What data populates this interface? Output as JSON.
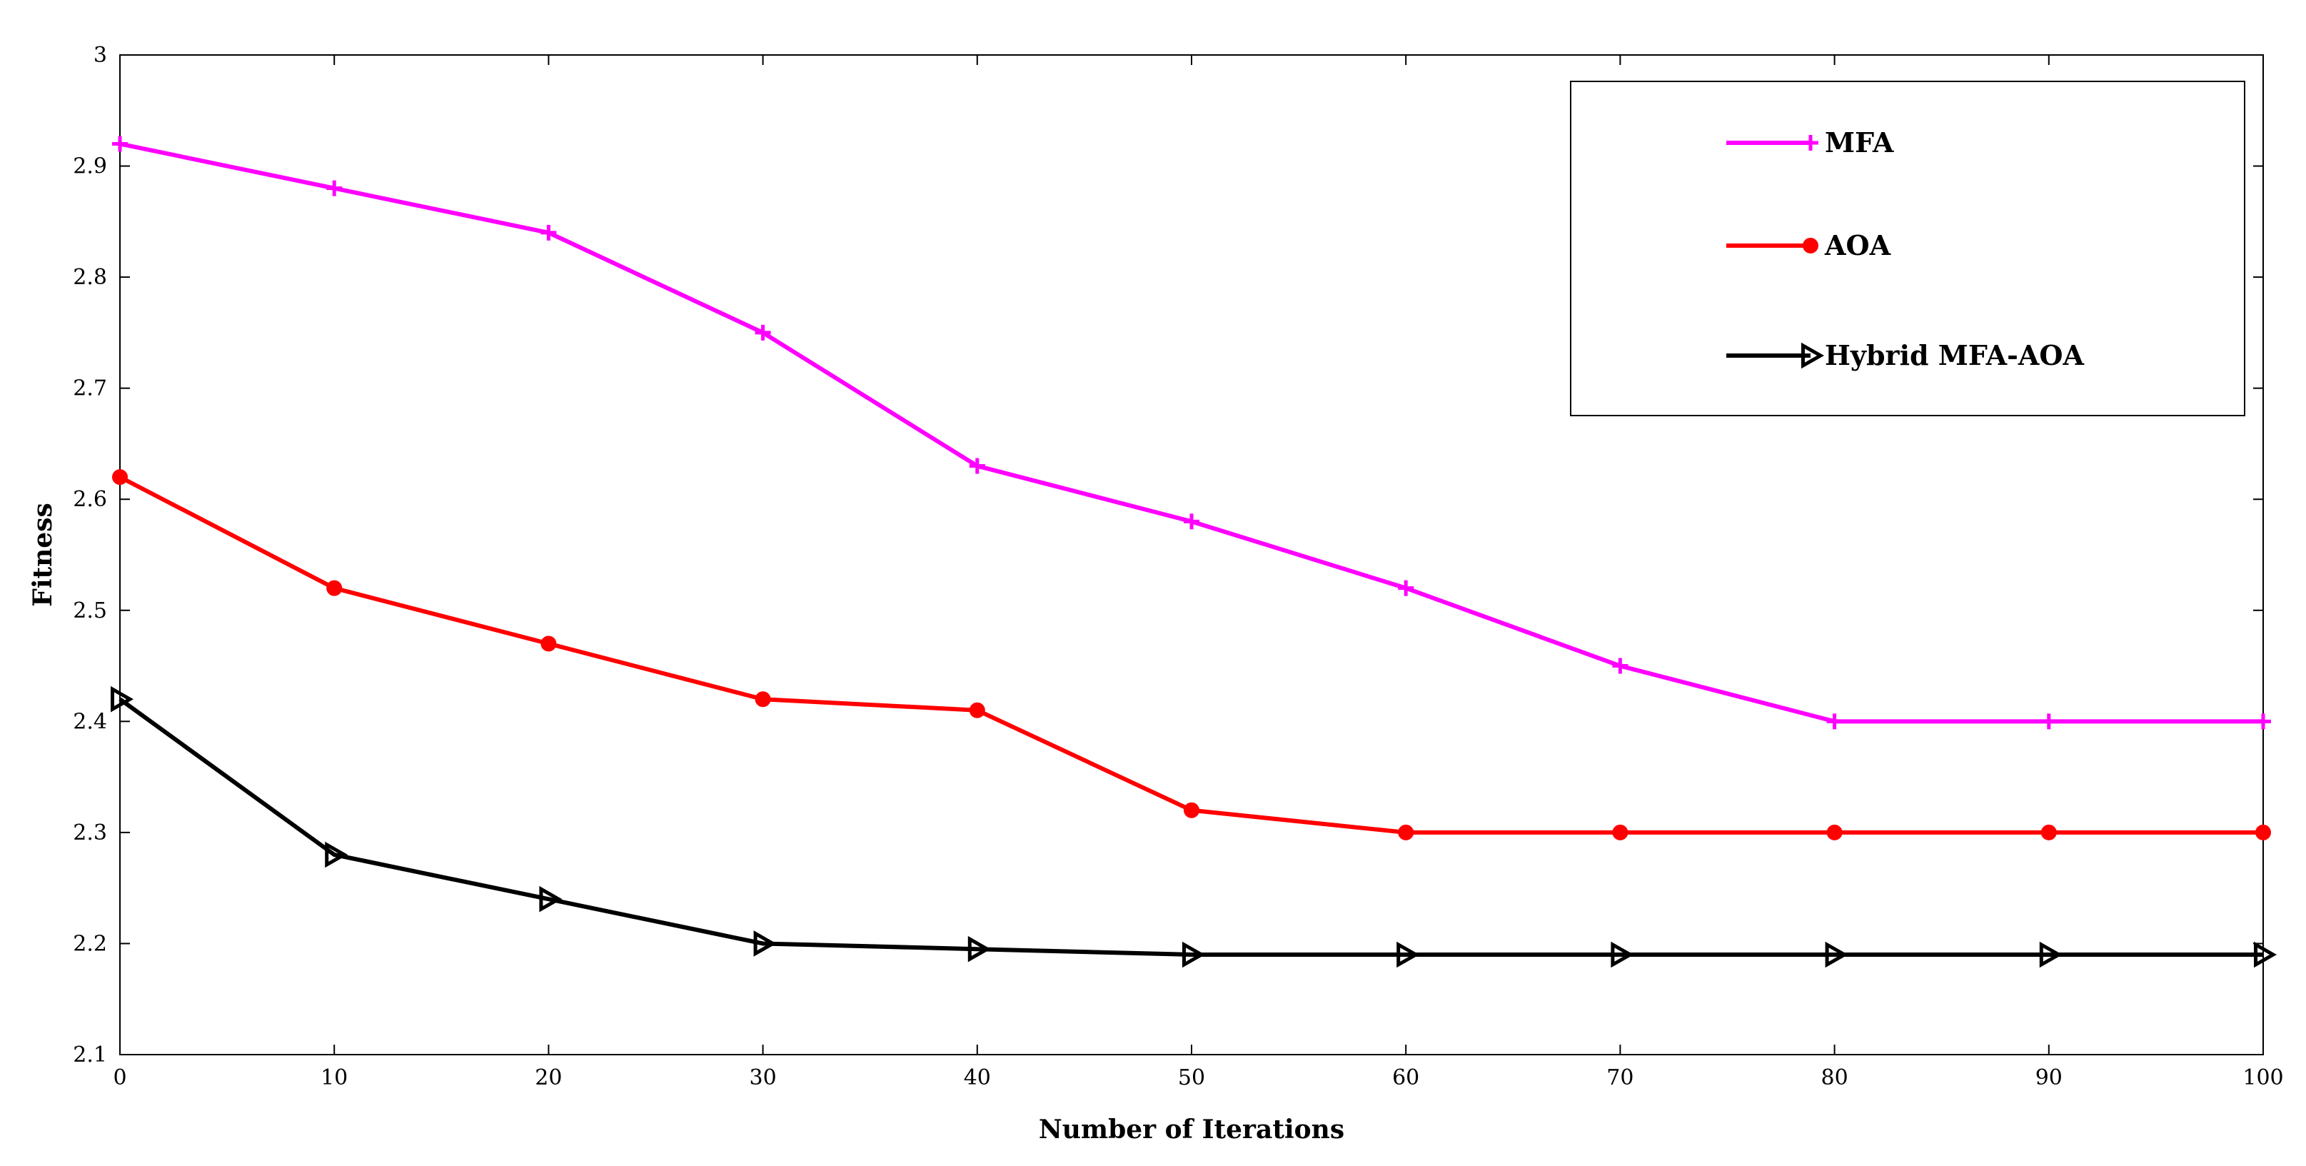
{
  "chart_data": {
    "type": "line",
    "xlabel": "Number of Iterations",
    "ylabel": "Fitness",
    "xlim": [
      0,
      100
    ],
    "ylim": [
      2.1,
      3.0
    ],
    "x_ticks": [
      "0",
      "10",
      "20",
      "30",
      "40",
      "50",
      "60",
      "70",
      "80",
      "90",
      "100"
    ],
    "y_ticks": [
      "2.1",
      "2.2",
      "2.3",
      "2.4",
      "2.5",
      "2.6",
      "2.7",
      "2.8",
      "2.9",
      "3"
    ],
    "grid": false,
    "legend_position": "top-right",
    "x": [
      0,
      10,
      20,
      30,
      40,
      50,
      60,
      70,
      80,
      90,
      100
    ],
    "series": [
      {
        "name": "MFA",
        "color": "#ff00ff",
        "marker": "plus",
        "values": [
          2.92,
          2.88,
          2.84,
          2.75,
          2.63,
          2.58,
          2.52,
          2.45,
          2.4,
          2.4,
          2.4
        ]
      },
      {
        "name": "AOA",
        "color": "#ff0000",
        "marker": "circle",
        "values": [
          2.62,
          2.52,
          2.47,
          2.42,
          2.41,
          2.32,
          2.3,
          2.3,
          2.3,
          2.3,
          2.3
        ]
      },
      {
        "name": "Hybrid MFA-AOA",
        "color": "#000000",
        "marker": "triangle-right",
        "values": [
          2.42,
          2.28,
          2.24,
          2.2,
          2.195,
          2.19,
          2.19,
          2.19,
          2.19,
          2.19,
          2.19
        ]
      }
    ]
  }
}
